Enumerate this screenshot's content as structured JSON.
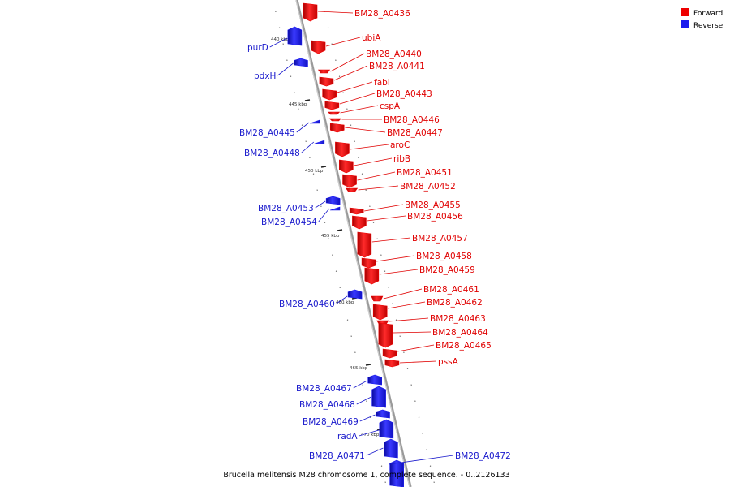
{
  "caption": "Brucella melitensis M28 chromosome 1, complete sequence. - 0..2126133",
  "legend": [
    {
      "label": "Forward",
      "color": "#ee0000"
    },
    {
      "label": "Reverse",
      "color": "#1a1aee"
    }
  ],
  "colors": {
    "forward": "#ee0000",
    "reverse": "#1a1aee",
    "forward_label": "#e00000",
    "reverse_label": "#1818cc",
    "backbone": "#8f8f8f"
  },
  "kbp_labels": [
    "440 kbp",
    "445 kbp",
    "450 kbp",
    "455 kbp",
    "460 kbp",
    "465 kbp",
    "470 kbp"
  ],
  "genes": [
    {
      "name": "BM28_A0436",
      "strand": "forward"
    },
    {
      "name": "ubiA",
      "strand": "forward"
    },
    {
      "name": "purD",
      "strand": "reverse"
    },
    {
      "name": "pdxH",
      "strand": "reverse"
    },
    {
      "name": "BM28_A0440",
      "strand": "forward"
    },
    {
      "name": "BM28_A0441",
      "strand": "forward"
    },
    {
      "name": "fabI",
      "strand": "forward"
    },
    {
      "name": "BM28_A0443",
      "strand": "forward"
    },
    {
      "name": "cspA",
      "strand": "forward"
    },
    {
      "name": "BM28_A0445",
      "strand": "reverse"
    },
    {
      "name": "BM28_A0446",
      "strand": "forward"
    },
    {
      "name": "BM28_A0447",
      "strand": "forward"
    },
    {
      "name": "BM28_A0448",
      "strand": "reverse"
    },
    {
      "name": "aroC",
      "strand": "forward"
    },
    {
      "name": "ribB",
      "strand": "forward"
    },
    {
      "name": "BM28_A0451",
      "strand": "forward"
    },
    {
      "name": "BM28_A0452",
      "strand": "forward"
    },
    {
      "name": "BM28_A0453",
      "strand": "reverse"
    },
    {
      "name": "BM28_A0454",
      "strand": "reverse"
    },
    {
      "name": "BM28_A0455",
      "strand": "forward"
    },
    {
      "name": "BM28_A0456",
      "strand": "forward"
    },
    {
      "name": "BM28_A0457",
      "strand": "forward"
    },
    {
      "name": "BM28_A0458",
      "strand": "forward"
    },
    {
      "name": "BM28_A0459",
      "strand": "forward"
    },
    {
      "name": "BM28_A0460",
      "strand": "reverse"
    },
    {
      "name": "BM28_A0461",
      "strand": "forward"
    },
    {
      "name": "BM28_A0462",
      "strand": "forward"
    },
    {
      "name": "BM28_A0463",
      "strand": "forward"
    },
    {
      "name": "BM28_A0464",
      "strand": "forward"
    },
    {
      "name": "BM28_A0465",
      "strand": "forward"
    },
    {
      "name": "pssA",
      "strand": "forward"
    },
    {
      "name": "BM28_A0467",
      "strand": "reverse"
    },
    {
      "name": "BM28_A0468",
      "strand": "reverse"
    },
    {
      "name": "BM28_A0469",
      "strand": "reverse"
    },
    {
      "name": "radA",
      "strand": "reverse"
    },
    {
      "name": "BM28_A0471",
      "strand": "reverse"
    },
    {
      "name": "BM28_A0472",
      "strand": "reverse"
    }
  ]
}
